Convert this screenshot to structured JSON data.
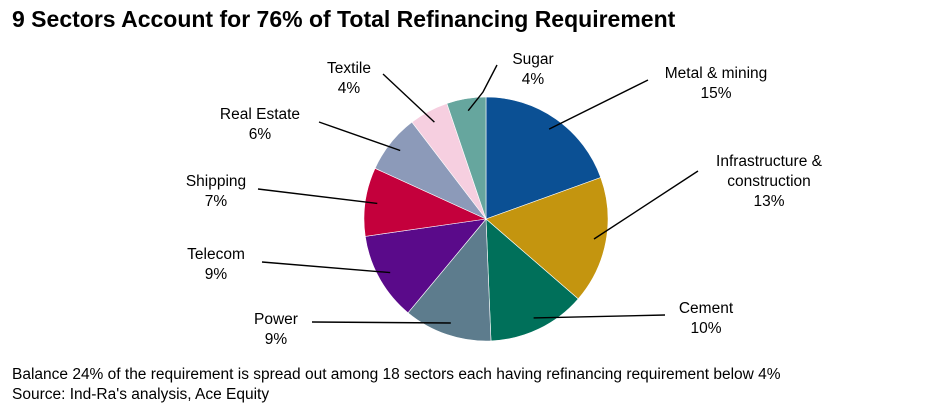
{
  "chart_data": {
    "type": "pie",
    "title": "9 Sectors Account for 76% of Total Refinancing Requirement",
    "slices": [
      {
        "label": [
          "Metal & mining"
        ],
        "value": 15,
        "value_text": "15%",
        "color": "#0b5094"
      },
      {
        "label": [
          "Infrastructure &",
          "construction"
        ],
        "value": 13,
        "value_text": "13%",
        "color": "#c4950f"
      },
      {
        "label": [
          "Cement"
        ],
        "value": 10,
        "value_text": "10%",
        "color": "#00705a"
      },
      {
        "label": [
          "Power"
        ],
        "value": 9,
        "value_text": "9%",
        "color": "#5d7c8d"
      },
      {
        "label": [
          "Telecom"
        ],
        "value": 9,
        "value_text": "9%",
        "color": "#5a0a8a"
      },
      {
        "label": [
          "Shipping"
        ],
        "value": 7,
        "value_text": "7%",
        "color": "#c4003c"
      },
      {
        "label": [
          "Real Estate"
        ],
        "value": 6,
        "value_text": "6%",
        "color": "#8c9ab9"
      },
      {
        "label": [
          "Textile"
        ],
        "value": 4,
        "value_text": "4%",
        "color": "#f6cfe0"
      },
      {
        "label": [
          "Sugar"
        ],
        "value": 4,
        "value_text": "4%",
        "color": "#66a69e"
      }
    ]
  },
  "footer": {
    "note": "Balance 24% of the requirement is spread out among 18 sectors each having refinancing requirement below 4%",
    "source": "Source: Ind-Ra's analysis, Ace Equity"
  }
}
